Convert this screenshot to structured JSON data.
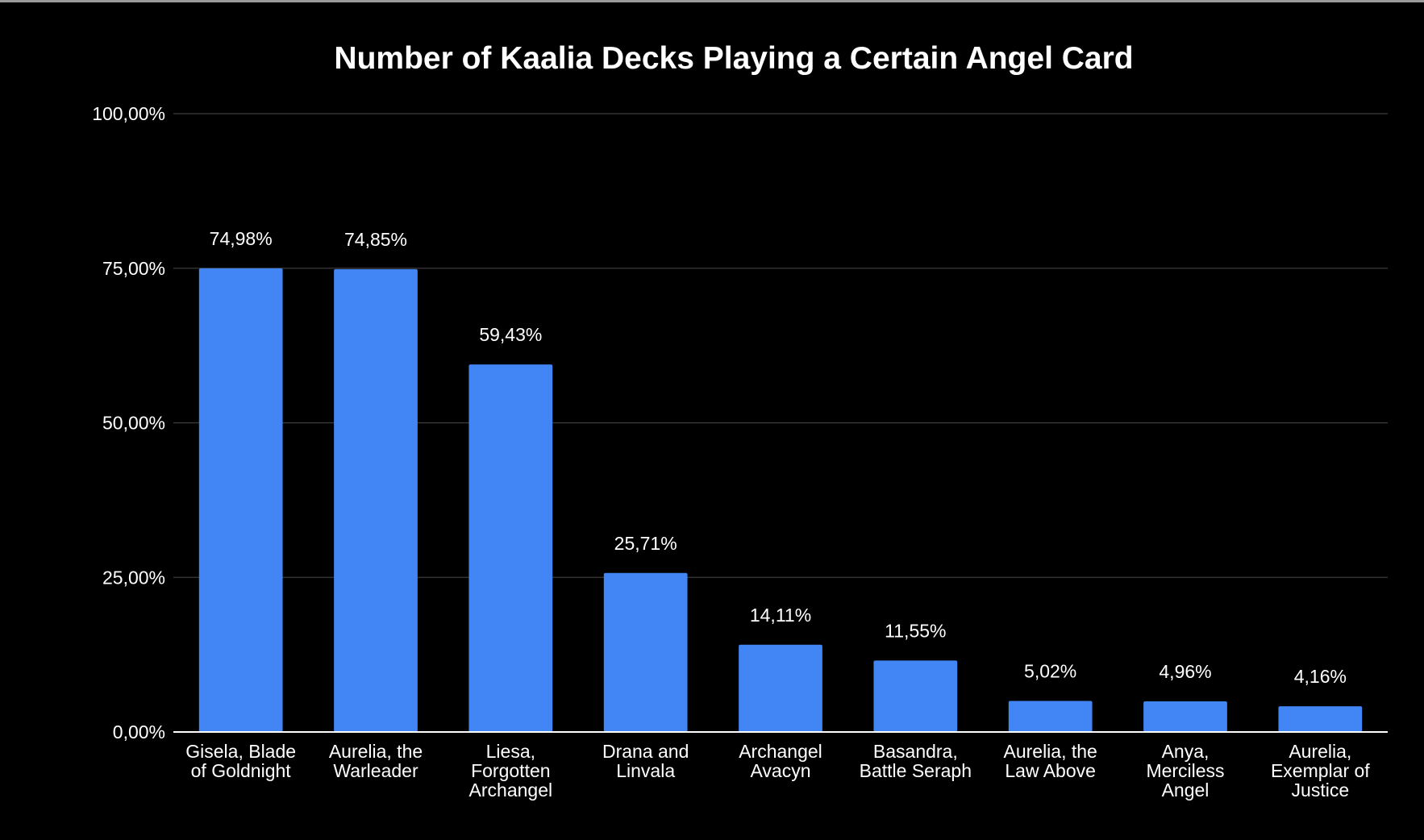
{
  "chart_data": {
    "type": "bar",
    "title": "Number of Kaalia Decks Playing a Certain Angel Card",
    "xlabel": "",
    "ylabel": "",
    "ylim": [
      0,
      100
    ],
    "yticks": [
      0,
      25,
      50,
      75,
      100
    ],
    "ytick_labels": [
      "0,00%",
      "25,00%",
      "50,00%",
      "75,00%",
      "100,00%"
    ],
    "grid": true,
    "legend": "none",
    "categories": [
      "Gisela, Blade of Goldnight",
      "Aurelia, the Warleader",
      "Liesa, Forgotten Archangel",
      "Drana and Linvala",
      "Archangel Avacyn",
      "Basandra, Battle Seraph",
      "Aurelia, the Law Above",
      "Anya, Merciless Angel",
      "Aurelia, Exemplar of Justice"
    ],
    "category_lines": [
      [
        "Gisela, Blade",
        "of Goldnight"
      ],
      [
        "Aurelia, the",
        "Warleader"
      ],
      [
        "Liesa,",
        "Forgotten",
        "Archangel"
      ],
      [
        "Drana and",
        "Linvala"
      ],
      [
        "Archangel",
        "Avacyn"
      ],
      [
        "Basandra,",
        "Battle Seraph"
      ],
      [
        "Aurelia, the",
        "Law Above"
      ],
      [
        "Anya,",
        "Merciless",
        "Angel"
      ],
      [
        "Aurelia,",
        "Exemplar of",
        "Justice"
      ]
    ],
    "values": [
      74.98,
      74.85,
      59.43,
      25.71,
      14.11,
      11.55,
      5.02,
      4.96,
      4.16
    ],
    "value_labels": [
      "74,98%",
      "74,85%",
      "59,43%",
      "25,71%",
      "14,11%",
      "11,55%",
      "5,02%",
      "4,96%",
      "4,16%"
    ],
    "colors": {
      "bar": "#4285f4",
      "background": "#000000",
      "grid": "#3c3c3c",
      "axis": "#ffffff",
      "text": "#ffffff"
    }
  }
}
